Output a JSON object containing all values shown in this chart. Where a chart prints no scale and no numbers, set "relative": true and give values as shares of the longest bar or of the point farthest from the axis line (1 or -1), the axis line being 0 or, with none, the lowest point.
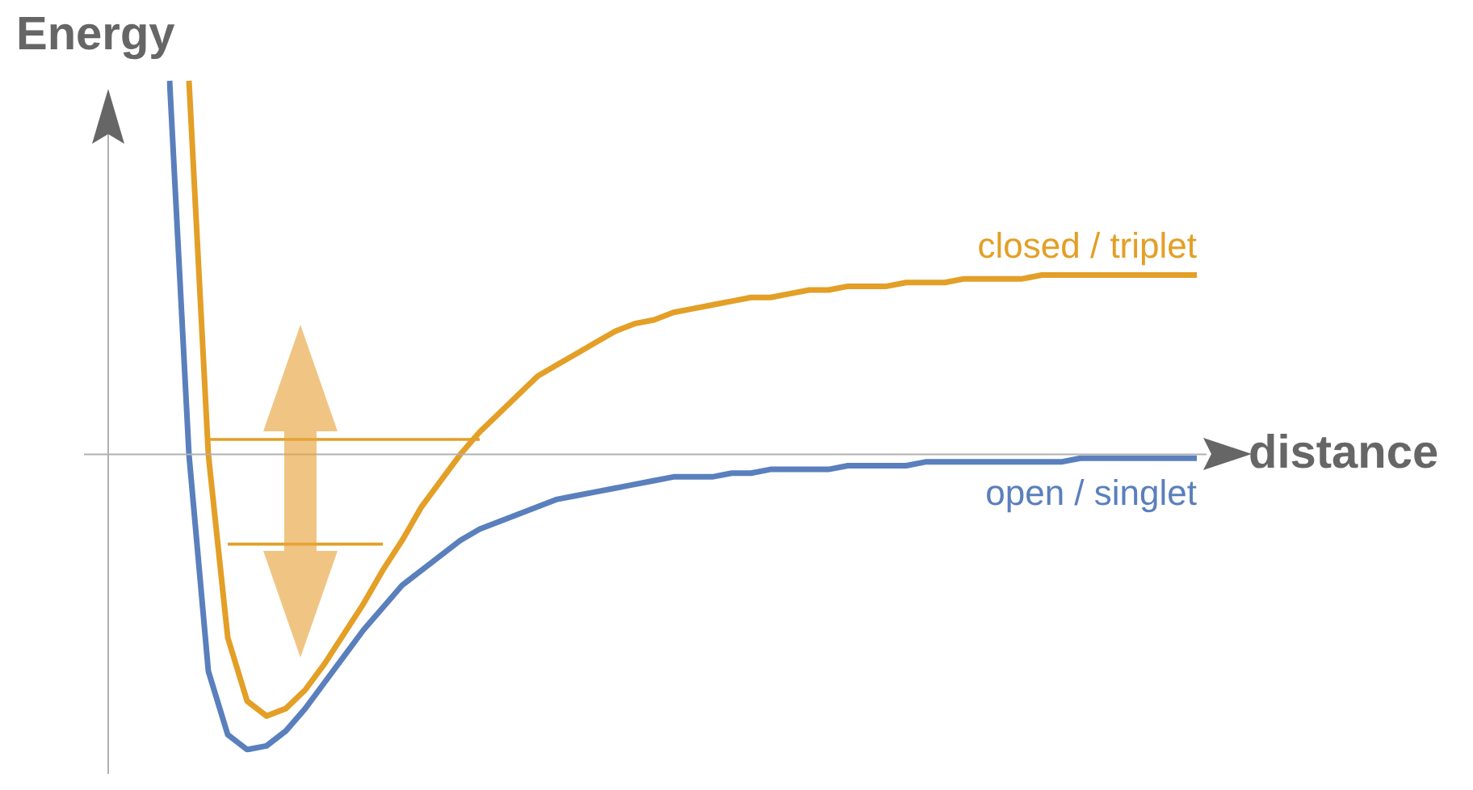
{
  "chart_data": {
    "type": "line",
    "xlabel": "distance",
    "ylabel": "Energy",
    "relative": true,
    "tick_labels": false,
    "grid": false,
    "legend": false,
    "marker": "none",
    "line_style": "solid",
    "categories": [
      null,
      null,
      null,
      null,
      null,
      null,
      null,
      null,
      null,
      null,
      null,
      null,
      null,
      null,
      null,
      null,
      null,
      null,
      null,
      null,
      null,
      null,
      null,
      null,
      null,
      null,
      null,
      null,
      null,
      null,
      null,
      null,
      null,
      null,
      null,
      null,
      null,
      null,
      null,
      null,
      null,
      null,
      null,
      null,
      null,
      null,
      null,
      null,
      null,
      null,
      null,
      null,
      null,
      null
    ],
    "series": [
      {
        "name": "closed / triplet",
        "color": "#e39f26",
        "values": [
          null,
          1.0,
          0.0,
          -0.49,
          -0.66,
          -0.7,
          -0.68,
          -0.63,
          -0.56,
          -0.48,
          -0.4,
          -0.31,
          -0.23,
          -0.14,
          -0.07,
          0.0,
          0.06,
          0.11,
          0.16,
          0.21,
          0.24,
          0.27,
          0.3,
          0.33,
          0.35,
          0.36,
          0.38,
          0.39,
          0.4,
          0.41,
          0.42,
          0.42,
          0.43,
          0.44,
          0.44,
          0.45,
          0.45,
          0.45,
          0.46,
          0.46,
          0.46,
          0.47,
          0.47,
          0.47,
          0.47,
          0.48,
          0.48,
          0.48,
          0.48,
          0.48,
          0.48,
          0.48,
          0.48,
          0.48
        ]
      },
      {
        "name": "open / singlet",
        "color": "#5a7fbd",
        "values": [
          1.0,
          0.0,
          -0.58,
          -0.75,
          -0.79,
          -0.78,
          -0.74,
          -0.68,
          -0.61,
          -0.54,
          -0.47,
          -0.41,
          -0.35,
          -0.31,
          -0.27,
          -0.23,
          -0.2,
          -0.18,
          -0.16,
          -0.14,
          -0.12,
          -0.11,
          -0.1,
          -0.09,
          -0.08,
          -0.07,
          -0.06,
          -0.06,
          -0.06,
          -0.05,
          -0.05,
          -0.04,
          -0.04,
          -0.04,
          -0.04,
          -0.03,
          -0.03,
          -0.03,
          -0.03,
          -0.02,
          -0.02,
          -0.02,
          -0.02,
          -0.02,
          -0.02,
          -0.02,
          -0.02,
          -0.01,
          -0.01,
          -0.01,
          -0.01,
          -0.01,
          -0.01,
          -0.01
        ]
      },
      {
        "color": "#e39f26",
        "values": [
          null,
          null,
          0.04,
          0.04,
          0.04,
          0.04,
          0.04,
          0.04,
          0.04,
          0.04,
          0.04,
          0.04,
          0.04,
          0.04,
          0.04,
          0.04,
          0.04,
          null,
          null,
          null,
          null,
          null,
          null,
          null,
          null,
          null,
          null,
          null,
          null,
          null,
          null,
          null,
          null,
          null,
          null,
          null,
          null,
          null,
          null,
          null,
          null,
          null,
          null,
          null,
          null,
          null,
          null,
          null,
          null,
          null,
          null,
          null,
          null,
          null
        ]
      },
      {
        "color": "#e39f26",
        "values": [
          null,
          null,
          null,
          -0.24,
          -0.24,
          -0.24,
          -0.24,
          -0.24,
          -0.24,
          -0.24,
          -0.24,
          -0.24,
          null,
          null,
          null,
          null,
          null,
          null,
          null,
          null,
          null,
          null,
          null,
          null,
          null,
          null,
          null,
          null,
          null,
          null,
          null,
          null,
          null,
          null,
          null,
          null,
          null,
          null,
          null,
          null,
          null,
          null,
          null,
          null,
          null,
          null,
          null,
          null,
          null,
          null,
          null,
          null,
          null,
          null
        ]
      }
    ]
  }
}
